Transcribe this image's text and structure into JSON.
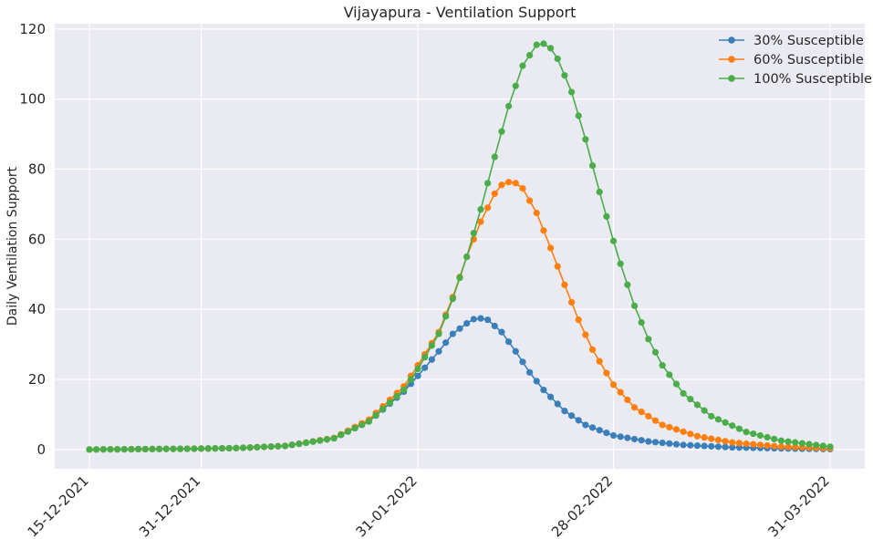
{
  "chart_data": {
    "type": "line",
    "title": "Vijayapura - Ventilation Support",
    "xlabel": "",
    "ylabel": "Daily Ventilation Support",
    "x_start_date": "15-12-2021",
    "x_end_date": "31-03-2022",
    "xticks": [
      "15-12-2021",
      "31-12-2021",
      "31-01-2022",
      "28-02-2022",
      "31-03-2022"
    ],
    "yticks": [
      0,
      20,
      40,
      60,
      80,
      100,
      120
    ],
    "ylim": [
      -5.5,
      121.5
    ],
    "grid": true,
    "legend_position": "top-right",
    "marker": "circle",
    "series": [
      {
        "name": "30% Susceptible",
        "color": "#3a7fb9",
        "points": [
          [
            "15-12-2021",
            0
          ],
          [
            "22-12-2021",
            0.1
          ],
          [
            "29-12-2021",
            0.2
          ],
          [
            "05-01-2022",
            0.4
          ],
          [
            "12-01-2022",
            1
          ],
          [
            "19-01-2022",
            3.2
          ],
          [
            "24-01-2022",
            8
          ],
          [
            "29-01-2022",
            16.5
          ],
          [
            "31-01-2022",
            21
          ],
          [
            "03-02-2022",
            28
          ],
          [
            "05-02-2022",
            33
          ],
          [
            "07-02-2022",
            36
          ],
          [
            "08-02-2022",
            37.2
          ],
          [
            "09-02-2022",
            37.4
          ],
          [
            "10-02-2022",
            37
          ],
          [
            "12-02-2022",
            33.5
          ],
          [
            "14-02-2022",
            28
          ],
          [
            "16-02-2022",
            22
          ],
          [
            "18-02-2022",
            17
          ],
          [
            "21-02-2022",
            11
          ],
          [
            "24-02-2022",
            7
          ],
          [
            "28-02-2022",
            4
          ],
          [
            "05-03-2022",
            2.3
          ],
          [
            "10-03-2022",
            1.3
          ],
          [
            "17-03-2022",
            0.6
          ],
          [
            "24-03-2022",
            0.3
          ],
          [
            "31-03-2022",
            0.1
          ]
        ]
      },
      {
        "name": "60% Susceptible",
        "color": "#ff7f0e",
        "points": [
          [
            "15-12-2021",
            0
          ],
          [
            "22-12-2021",
            0.1
          ],
          [
            "29-12-2021",
            0.2
          ],
          [
            "05-01-2022",
            0.4
          ],
          [
            "12-01-2022",
            1
          ],
          [
            "19-01-2022",
            3.3
          ],
          [
            "24-01-2022",
            8.5
          ],
          [
            "29-01-2022",
            18
          ],
          [
            "31-01-2022",
            24
          ],
          [
            "03-02-2022",
            33.5
          ],
          [
            "05-02-2022",
            43.5
          ],
          [
            "07-02-2022",
            55
          ],
          [
            "09-02-2022",
            65
          ],
          [
            "11-02-2022",
            73
          ],
          [
            "12-02-2022",
            75.5
          ],
          [
            "13-02-2022",
            76.3
          ],
          [
            "14-02-2022",
            76
          ],
          [
            "15-02-2022",
            74.5
          ],
          [
            "17-02-2022",
            67.5
          ],
          [
            "19-02-2022",
            57.5
          ],
          [
            "21-02-2022",
            47
          ],
          [
            "23-02-2022",
            37
          ],
          [
            "25-02-2022",
            28.5
          ],
          [
            "28-02-2022",
            18.5
          ],
          [
            "03-03-2022",
            12
          ],
          [
            "07-03-2022",
            7
          ],
          [
            "12-03-2022",
            3.8
          ],
          [
            "17-03-2022",
            2
          ],
          [
            "24-03-2022",
            0.8
          ],
          [
            "31-03-2022",
            0.3
          ]
        ]
      },
      {
        "name": "100% Susceptible",
        "color": "#4aad49",
        "points": [
          [
            "15-12-2021",
            0
          ],
          [
            "22-12-2021",
            0.1
          ],
          [
            "29-12-2021",
            0.2
          ],
          [
            "05-01-2022",
            0.4
          ],
          [
            "12-01-2022",
            1
          ],
          [
            "19-01-2022",
            3.2
          ],
          [
            "24-01-2022",
            8
          ],
          [
            "29-01-2022",
            17
          ],
          [
            "31-01-2022",
            23
          ],
          [
            "03-02-2022",
            33
          ],
          [
            "05-02-2022",
            43
          ],
          [
            "07-02-2022",
            55
          ],
          [
            "09-02-2022",
            68.5
          ],
          [
            "11-02-2022",
            83.5
          ],
          [
            "13-02-2022",
            98
          ],
          [
            "15-02-2022",
            109.5
          ],
          [
            "17-02-2022",
            115.5
          ],
          [
            "18-02-2022",
            115.8
          ],
          [
            "19-02-2022",
            114.5
          ],
          [
            "20-02-2022",
            111.5
          ],
          [
            "22-02-2022",
            102
          ],
          [
            "24-02-2022",
            88.5
          ],
          [
            "26-02-2022",
            73.5
          ],
          [
            "28-02-2022",
            59.5
          ],
          [
            "01-03-2022",
            53
          ],
          [
            "03-03-2022",
            41
          ],
          [
            "05-03-2022",
            31.5
          ],
          [
            "07-03-2022",
            24
          ],
          [
            "10-03-2022",
            16
          ],
          [
            "14-03-2022",
            9.5
          ],
          [
            "19-03-2022",
            5
          ],
          [
            "24-03-2022",
            2.5
          ],
          [
            "31-03-2022",
            0.8
          ]
        ]
      }
    ]
  }
}
